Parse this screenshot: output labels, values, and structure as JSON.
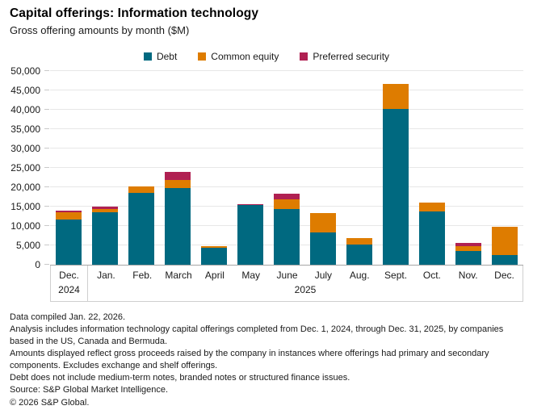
{
  "header": {
    "title": "Capital offerings: Information technology",
    "subtitle": "Gross offering amounts by month ($M)"
  },
  "chart_data": {
    "type": "bar",
    "stacked": true,
    "title": "Capital offerings: Information technology",
    "subtitle": "Gross offering amounts by month ($M)",
    "categories": [
      "Dec.",
      "Jan.",
      "Feb.",
      "March",
      "April",
      "May",
      "June",
      "July",
      "Aug.",
      "Sept.",
      "Oct.",
      "Nov.",
      "Dec."
    ],
    "year_groups": [
      {
        "label": "2024",
        "span": 1
      },
      {
        "label": "2025",
        "span": 12
      }
    ],
    "series": [
      {
        "name": "Debt",
        "color": "#006980",
        "values": [
          11600,
          13600,
          18500,
          19800,
          4300,
          15400,
          14400,
          8400,
          5200,
          40200,
          13700,
          3500,
          2400
        ]
      },
      {
        "name": "Common equity",
        "color": "#de7c00",
        "values": [
          1900,
          700,
          1800,
          2000,
          400,
          200,
          2400,
          4900,
          1600,
          6500,
          2300,
          1200,
          7400
        ]
      },
      {
        "name": "Preferred security",
        "color": "#b02052",
        "values": [
          400,
          700,
          0,
          2200,
          0,
          100,
          1600,
          0,
          0,
          0,
          0,
          900,
          0
        ]
      }
    ],
    "ylim": [
      0,
      50000
    ],
    "yticks": [
      0,
      5000,
      10000,
      15000,
      20000,
      25000,
      30000,
      35000,
      40000,
      45000,
      50000
    ],
    "ytick_labels": [
      "0",
      "5,000",
      "10,000",
      "15,000",
      "20,000",
      "25,000",
      "30,000",
      "35,000",
      "40,000",
      "45,000",
      "50,000"
    ],
    "grid": "horizontal",
    "legend_position": "top",
    "colors": {
      "debt": "#006980",
      "common_equity": "#de7c00",
      "preferred_security": "#b02052",
      "gridline": "#e7e7e7",
      "axis_line": "#a6a6a6",
      "label_box_border": "#cfcfcf"
    }
  },
  "footnotes": [
    "Data compiled Jan. 22, 2026.",
    "Analysis includes information technology capital offerings completed from Dec. 1, 2024, through Dec. 31, 2025, by companies based in the US, Canada and Bermuda.",
    "Amounts displayed reflect gross proceeds raised by the company in instances where offerings had primary and secondary components. Excludes exchange and shelf offerings.",
    "Debt does not include medium-term notes, branded notes or structured finance issues.",
    "Source: S&P Global Market Intelligence.",
    "© 2026 S&P Global."
  ]
}
